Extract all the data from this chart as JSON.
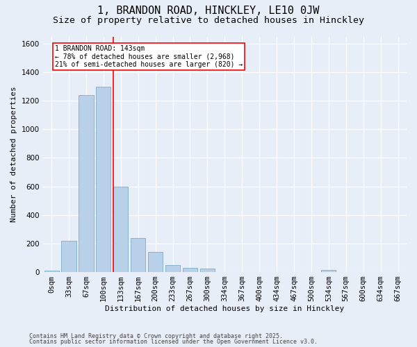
{
  "title": "1, BRANDON ROAD, HINCKLEY, LE10 0JW",
  "subtitle": "Size of property relative to detached houses in Hinckley",
  "xlabel": "Distribution of detached houses by size in Hinckley",
  "ylabel": "Number of detached properties",
  "footnote1": "Contains HM Land Registry data © Crown copyright and database right 2025.",
  "footnote2": "Contains public sector information licensed under the Open Government Licence v3.0.",
  "categories": [
    "0sqm",
    "33sqm",
    "67sqm",
    "100sqm",
    "133sqm",
    "167sqm",
    "200sqm",
    "233sqm",
    "267sqm",
    "300sqm",
    "334sqm",
    "367sqm",
    "400sqm",
    "434sqm",
    "467sqm",
    "500sqm",
    "534sqm",
    "567sqm",
    "600sqm",
    "634sqm",
    "667sqm"
  ],
  "values": [
    10,
    220,
    1240,
    1300,
    600,
    240,
    140,
    50,
    30,
    25,
    0,
    0,
    0,
    0,
    0,
    0,
    15,
    0,
    0,
    0,
    0
  ],
  "bar_color": "#b8d0e8",
  "bar_edge_color": "#7aaec8",
  "vline_x_index": 4,
  "annotation_text_line1": "1 BRANDON ROAD: 143sqm",
  "annotation_text_line2": "← 78% of detached houses are smaller (2,968)",
  "annotation_text_line3": "21% of semi-detached houses are larger (820) →",
  "annotation_box_color": "white",
  "annotation_box_edge": "red",
  "vline_color": "red",
  "ylim": [
    0,
    1650
  ],
  "yticks": [
    0,
    200,
    400,
    600,
    800,
    1000,
    1200,
    1400,
    1600
  ],
  "bg_color": "#e8eef8",
  "plot_bg_color": "#e8eef8",
  "grid_color": "white",
  "title_fontsize": 11,
  "subtitle_fontsize": 9.5,
  "xlabel_fontsize": 8,
  "ylabel_fontsize": 8,
  "tick_fontsize": 7.5,
  "annotation_fontsize": 7,
  "footnote_fontsize": 6
}
